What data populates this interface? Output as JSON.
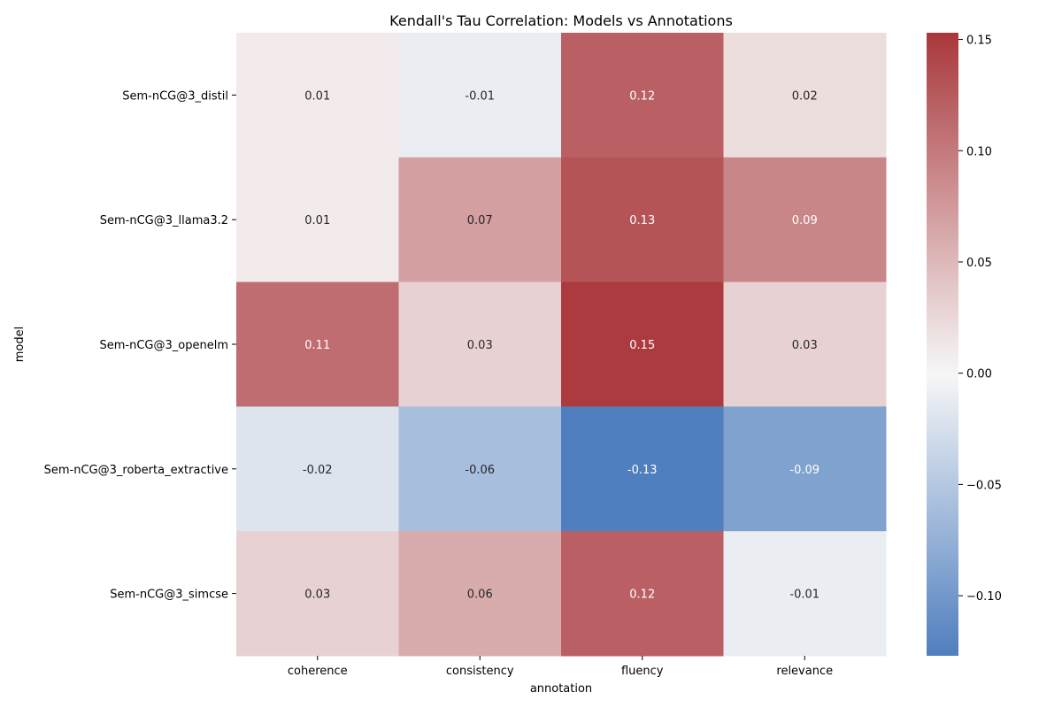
{
  "chart_data": {
    "type": "heatmap",
    "title": "Kendall's Tau Correlation: Models vs Annotations",
    "xlabel": "annotation",
    "ylabel": "model",
    "x_categories": [
      "coherence",
      "consistency",
      "fluency",
      "relevance"
    ],
    "y_categories": [
      "Sem-nCG@3_distil",
      "Sem-nCG@3_llama3.2",
      "Sem-nCG@3_openelm",
      "Sem-nCG@3_roberta_extractive",
      "Sem-nCG@3_simcse"
    ],
    "values": [
      [
        0.01,
        -0.01,
        0.12,
        0.02
      ],
      [
        0.01,
        0.07,
        0.13,
        0.09
      ],
      [
        0.11,
        0.03,
        0.15,
        0.03
      ],
      [
        -0.02,
        -0.06,
        -0.13,
        -0.09
      ],
      [
        0.03,
        0.06,
        0.12,
        -0.01
      ]
    ],
    "value_labels": [
      [
        "0.01",
        "-0.01",
        "0.12",
        "0.02"
      ],
      [
        "0.01",
        "0.07",
        "0.13",
        "0.09"
      ],
      [
        "0.11",
        "0.03",
        "0.15",
        "0.03"
      ],
      [
        "-0.02",
        "-0.06",
        "-0.13",
        "-0.09"
      ],
      [
        "0.03",
        "0.06",
        "0.12",
        "-0.01"
      ]
    ],
    "colormap": {
      "name": "vlag",
      "vmin": -0.127,
      "vmax": 0.153,
      "center": 0.0,
      "low_color": "#4f7fbf",
      "mid_color": "#f7f7f7",
      "high_color": "#a9373b"
    },
    "colorbar": {
      "ticks": [
        0.15,
        0.1,
        0.05,
        0.0,
        -0.05,
        -0.1
      ],
      "tick_labels": [
        "0.15",
        "0.10",
        "0.05",
        "0.00",
        "−0.05",
        "−0.10"
      ]
    },
    "grid": false,
    "legend": "colorbar-right"
  }
}
